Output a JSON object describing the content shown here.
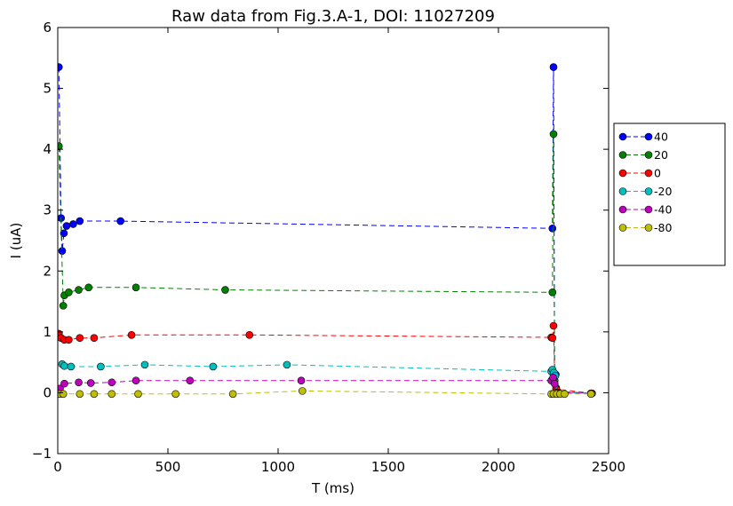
{
  "chart_data": {
    "type": "line",
    "title": "Raw data from Fig.3.A-1, DOI: 11027209",
    "xlabel": "T (ms)",
    "ylabel": "I (uA)",
    "xlim": [
      0,
      2500
    ],
    "ylim": [
      -1,
      6
    ],
    "x_ticks": [
      "0",
      "500",
      "1000",
      "1500",
      "2000",
      "2500"
    ],
    "y_ticks": [
      "−1",
      "0",
      "1",
      "2",
      "3",
      "4",
      "5",
      "6"
    ],
    "grid": false,
    "legend_placement": "right, outside plot",
    "line_style": "dashed with circle markers",
    "series": [
      {
        "name": "40",
        "color": "#0000ff",
        "points": [
          [
            5,
            5.35
          ],
          [
            15,
            2.87
          ],
          [
            20,
            2.33
          ],
          [
            28,
            2.62
          ],
          [
            40,
            2.74
          ],
          [
            70,
            2.77
          ],
          [
            100,
            2.82
          ],
          [
            285,
            2.82
          ],
          [
            2245,
            2.7
          ],
          [
            2250,
            5.35
          ],
          [
            2255,
            0.3
          ],
          [
            2260,
            0.3
          ],
          [
            2265,
            0.02
          ],
          [
            2420,
            -0.01
          ]
        ]
      },
      {
        "name": "20",
        "color": "#008000",
        "points": [
          [
            5,
            4.05
          ],
          [
            25,
            1.43
          ],
          [
            30,
            1.6
          ],
          [
            50,
            1.65
          ],
          [
            95,
            1.69
          ],
          [
            140,
            1.73
          ],
          [
            355,
            1.73
          ],
          [
            760,
            1.69
          ],
          [
            2245,
            1.65
          ],
          [
            2250,
            4.25
          ],
          [
            2255,
            0.2
          ],
          [
            2262,
            0.08
          ],
          [
            2268,
            0.02
          ],
          [
            2420,
            -0.01
          ]
        ]
      },
      {
        "name": "0",
        "color": "#ff0000",
        "points": [
          [
            5,
            0.97
          ],
          [
            15,
            0.9
          ],
          [
            30,
            0.87
          ],
          [
            50,
            0.87
          ],
          [
            100,
            0.9
          ],
          [
            165,
            0.9
          ],
          [
            335,
            0.95
          ],
          [
            870,
            0.95
          ],
          [
            2240,
            0.91
          ],
          [
            2245,
            0.9
          ],
          [
            2250,
            1.1
          ],
          [
            2255,
            0.28
          ],
          [
            2262,
            0.06
          ],
          [
            2425,
            -0.01
          ]
        ]
      },
      {
        "name": "-20",
        "color": "#00bfbf",
        "points": [
          [
            20,
            0.47
          ],
          [
            30,
            0.44
          ],
          [
            60,
            0.43
          ],
          [
            195,
            0.43
          ],
          [
            395,
            0.46
          ],
          [
            705,
            0.43
          ],
          [
            1040,
            0.46
          ],
          [
            2240,
            0.35
          ],
          [
            2245,
            0.38
          ],
          [
            2252,
            0.33
          ],
          [
            2258,
            0.28
          ],
          [
            2265,
            0.0
          ],
          [
            2420,
            -0.01
          ]
        ]
      },
      {
        "name": "-40",
        "color": "#bf00bf",
        "points": [
          [
            10,
            0.07
          ],
          [
            30,
            0.15
          ],
          [
            95,
            0.17
          ],
          [
            150,
            0.16
          ],
          [
            245,
            0.17
          ],
          [
            355,
            0.2
          ],
          [
            600,
            0.2
          ],
          [
            1105,
            0.2
          ],
          [
            2240,
            0.2
          ],
          [
            2248,
            0.25
          ],
          [
            2255,
            0.15
          ],
          [
            2260,
            0.0
          ],
          [
            2420,
            -0.01
          ]
        ]
      },
      {
        "name": "-80",
        "color": "#bfbf00",
        "points": [
          [
            10,
            -0.02
          ],
          [
            25,
            -0.02
          ],
          [
            100,
            -0.02
          ],
          [
            165,
            -0.02
          ],
          [
            245,
            -0.02
          ],
          [
            365,
            -0.02
          ],
          [
            535,
            -0.02
          ],
          [
            795,
            -0.02
          ],
          [
            1110,
            0.03
          ],
          [
            2240,
            -0.02
          ],
          [
            2250,
            -0.02
          ],
          [
            2265,
            -0.02
          ],
          [
            2280,
            -0.02
          ],
          [
            2300,
            -0.02
          ],
          [
            2420,
            -0.02
          ]
        ]
      }
    ]
  }
}
